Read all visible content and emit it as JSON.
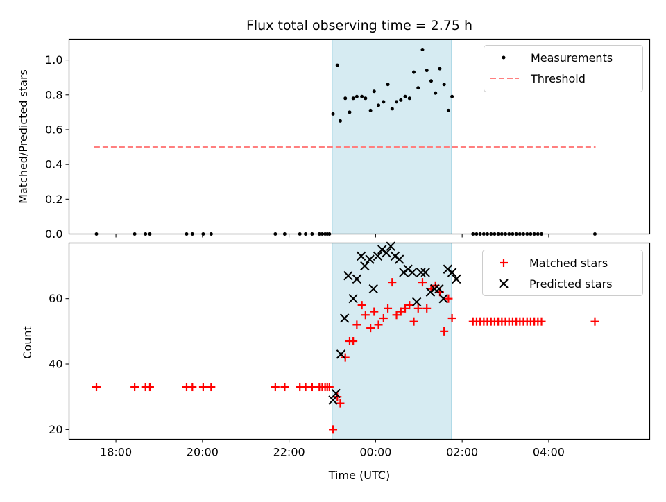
{
  "chart_data": [
    {
      "type": "scatter",
      "title": "Flux total observing time = 2.75 h",
      "ylabel": "Matched/Predicted stars",
      "xlabel": "",
      "ylim": [
        0,
        1.12
      ],
      "yticks": [
        "0.0",
        "0.2",
        "0.4",
        "0.6",
        "0.8",
        "1.0"
      ],
      "grid": false,
      "legend_position": "top-right",
      "highlight": {
        "x_start": "23:00",
        "x_end": "01:45",
        "color": "#add8e6"
      },
      "threshold": {
        "name": "Threshold",
        "value": 0.5,
        "x_start": "17:30",
        "x_end": "05:05",
        "color": "#ff7f7f"
      },
      "series": [
        {
          "name": "Measurements",
          "color": "#000000",
          "x": [
            "17:33",
            "18:26",
            "18:41",
            "18:47",
            "19:38",
            "19:46",
            "20:01",
            "20:12",
            "21:41",
            "21:54",
            "22:15",
            "22:23",
            "22:32",
            "22:42",
            "22:46",
            "22:50",
            "22:53",
            "22:56",
            "23:01",
            "23:07",
            "23:11",
            "23:18",
            "23:24",
            "23:29",
            "23:34",
            "23:41",
            "23:46",
            "23:53",
            "23:58",
            "00:04",
            "00:11",
            "00:17",
            "00:23",
            "00:29",
            "00:35",
            "00:41",
            "00:47",
            "00:53",
            "00:59",
            "01:05",
            "01:11",
            "01:17",
            "01:23",
            "01:29",
            "01:35",
            "01:41",
            "01:46",
            "02:15",
            "02:20",
            "02:25",
            "02:30",
            "02:35",
            "02:40",
            "02:45",
            "02:50",
            "02:55",
            "03:00",
            "03:05",
            "03:10",
            "03:15",
            "03:20",
            "03:25",
            "03:30",
            "03:35",
            "03:40",
            "03:45",
            "03:50",
            "05:04"
          ],
          "y": [
            0,
            0,
            0,
            0,
            0,
            0,
            0,
            0,
            0,
            0,
            0,
            0,
            0,
            0,
            0,
            0,
            0,
            0,
            0.69,
            0.97,
            0.65,
            0.78,
            0.7,
            0.78,
            0.79,
            0.79,
            0.78,
            0.71,
            0.82,
            0.74,
            0.76,
            0.86,
            0.72,
            0.76,
            0.77,
            0.79,
            0.78,
            0.93,
            0.84,
            1.06,
            0.94,
            0.88,
            0.81,
            0.95,
            0.86,
            0.71,
            0.79,
            0,
            0,
            0,
            0,
            0,
            0,
            0,
            0,
            0,
            0,
            0,
            0,
            0,
            0,
            0,
            0,
            0,
            0,
            0,
            0,
            0
          ]
        }
      ]
    },
    {
      "type": "scatter",
      "title": "",
      "ylabel": "Count",
      "xlabel": "Time (UTC)",
      "ylim": [
        17,
        77
      ],
      "yticks": [
        "20",
        "40",
        "60"
      ],
      "xticks": [
        "18:00",
        "20:00",
        "22:00",
        "00:00",
        "02:00",
        "04:00"
      ],
      "xlim": [
        "16:55",
        "06:20"
      ],
      "grid": false,
      "legend_position": "top-right",
      "highlight": {
        "x_start": "23:00",
        "x_end": "01:45",
        "color": "#add8e6"
      },
      "series": [
        {
          "name": "Matched stars",
          "marker": "plus",
          "color": "#ff0000",
          "x": [
            "17:33",
            "18:26",
            "18:41",
            "18:47",
            "19:38",
            "19:46",
            "20:01",
            "20:12",
            "21:41",
            "21:54",
            "22:15",
            "22:23",
            "22:32",
            "22:42",
            "22:46",
            "22:50",
            "22:53",
            "22:56",
            "23:01",
            "23:07",
            "23:11",
            "23:18",
            "23:24",
            "23:29",
            "23:34",
            "23:41",
            "23:46",
            "23:53",
            "23:58",
            "00:04",
            "00:11",
            "00:17",
            "00:23",
            "00:29",
            "00:35",
            "00:41",
            "00:47",
            "00:53",
            "00:59",
            "01:05",
            "01:11",
            "01:17",
            "01:23",
            "01:29",
            "01:35",
            "01:41",
            "01:46",
            "02:15",
            "02:20",
            "02:25",
            "02:30",
            "02:35",
            "02:40",
            "02:45",
            "02:50",
            "02:55",
            "03:00",
            "03:05",
            "03:10",
            "03:15",
            "03:20",
            "03:25",
            "03:30",
            "03:35",
            "03:40",
            "03:45",
            "03:50",
            "05:04"
          ],
          "y": [
            33,
            33,
            33,
            33,
            33,
            33,
            33,
            33,
            33,
            33,
            33,
            33,
            33,
            33,
            33,
            33,
            33,
            33,
            20,
            30,
            28,
            42,
            47,
            47,
            52,
            58,
            55,
            51,
            56,
            52,
            54,
            57,
            65,
            55,
            56,
            57,
            58,
            53,
            57,
            65,
            57,
            63,
            64,
            62,
            50,
            60,
            54,
            53,
            53,
            53,
            53,
            53,
            53,
            53,
            53,
            53,
            53,
            53,
            53,
            53,
            53,
            53,
            53,
            53,
            53,
            53,
            53,
            53
          ]
        },
        {
          "name": "Predicted stars",
          "marker": "x",
          "color": "#000000",
          "x": [
            "23:01",
            "23:05",
            "23:12",
            "23:17",
            "23:22",
            "23:29",
            "23:34",
            "23:40",
            "23:45",
            "23:52",
            "23:57",
            "00:03",
            "00:09",
            "00:15",
            "00:21",
            "00:27",
            "00:33",
            "00:39",
            "00:45",
            "00:51",
            "00:57",
            "01:03",
            "01:09",
            "01:16",
            "01:22",
            "01:28",
            "01:34",
            "01:40",
            "01:46",
            "01:52"
          ],
          "y": [
            29,
            31,
            43,
            54,
            67,
            60,
            66,
            73,
            70,
            72,
            63,
            73,
            75,
            74,
            76,
            73,
            72,
            68,
            69,
            68,
            59,
            68,
            68,
            62,
            63,
            63,
            60,
            69,
            68,
            66
          ]
        }
      ]
    }
  ]
}
